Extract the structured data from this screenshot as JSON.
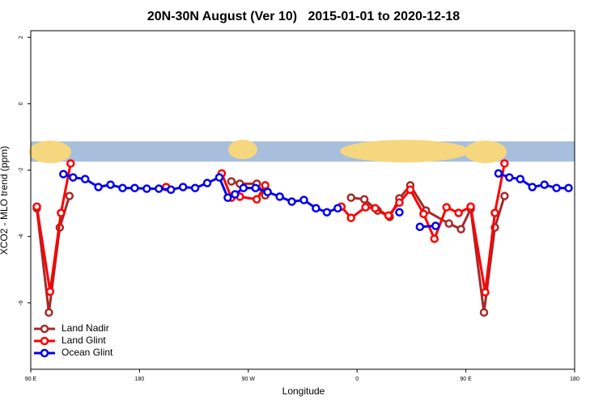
{
  "chart_data": {
    "type": "line",
    "title": "20N-30N August (Ver 10)   2015-01-01 to 2020-12-18",
    "xlabel": "Longitude",
    "ylabel": "XCO2 - MLO trend (ppm)",
    "xlim": [
      90,
      540
    ],
    "ylim": [
      -8,
      2.2
    ],
    "xticks": [
      {
        "value": 90,
        "label": "90 E"
      },
      180,
      {
        "value": 270,
        "label": "90 W"
      },
      {
        "value": 360,
        "label": "0"
      },
      {
        "value": 450,
        "label": "90 E"
      },
      {
        "value": 540,
        "label": "180"
      }
    ],
    "yticks": [
      2,
      0,
      -2,
      -4,
      -6
    ],
    "legend": "bottom-left",
    "series": [
      {
        "name": "Land Nadir",
        "color": "#a52a2a",
        "x": [
          95,
          105,
          114,
          122,
          null,
          256,
          263,
          277,
          284,
          null,
          355,
          366,
          377,
          387,
          395,
          404,
          417,
          436,
          446,
          454,
          465,
          474,
          482
        ],
        "values": [
          -3.15,
          -6.29,
          -3.73,
          -2.78,
          null,
          -2.34,
          -2.41,
          -2.41,
          -2.76,
          null,
          -2.83,
          -2.88,
          -3.22,
          -3.41,
          -2.85,
          -2.46,
          -3.22,
          -3.61,
          -3.78,
          -3.17,
          -6.29,
          -3.73,
          -2.78
        ]
      },
      {
        "name": "Land Glint",
        "color": "#ff0000",
        "x": [
          95,
          106,
          115,
          123,
          null,
          202,
          null,
          248,
          256,
          263,
          277,
          284,
          null,
          347,
          355,
          367,
          375,
          386,
          395,
          404,
          415,
          424,
          434,
          444,
          454,
          466,
          474,
          482
        ],
        "values": [
          -3.1,
          -5.66,
          -3.29,
          -1.8,
          null,
          -2.51,
          null,
          -2.1,
          -2.83,
          -2.8,
          -2.88,
          -2.46,
          null,
          -3.1,
          -3.44,
          -3.12,
          -3.15,
          -3.37,
          -2.98,
          -2.59,
          -3.32,
          -4.07,
          -3.12,
          -3.29,
          -3.1,
          -5.68,
          -3.29,
          -1.8
        ]
      },
      {
        "name": "Ocean Glint",
        "color": "#0000ee",
        "x": [
          117,
          125,
          135,
          146,
          156,
          166,
          176,
          186,
          196,
          206,
          216,
          226,
          236,
          246,
          253,
          259,
          266,
          276,
          286,
          296,
          306,
          316,
          326,
          335,
          344,
          null,
          395,
          null,
          412,
          425,
          null,
          477,
          486,
          495,
          505,
          515,
          525,
          535
        ],
        "values": [
          -2.12,
          -2.22,
          -2.27,
          -2.51,
          -2.44,
          -2.54,
          -2.54,
          -2.56,
          -2.56,
          -2.59,
          -2.51,
          -2.54,
          -2.39,
          -2.22,
          -2.83,
          -2.73,
          -2.54,
          -2.54,
          -2.66,
          -2.8,
          -2.95,
          -2.9,
          -3.15,
          -3.27,
          -3.15,
          null,
          -3.27,
          null,
          -3.71,
          -3.68,
          null,
          -2.1,
          -2.22,
          -2.27,
          -2.51,
          -2.44,
          -2.54,
          -2.54
        ]
      }
    ]
  }
}
